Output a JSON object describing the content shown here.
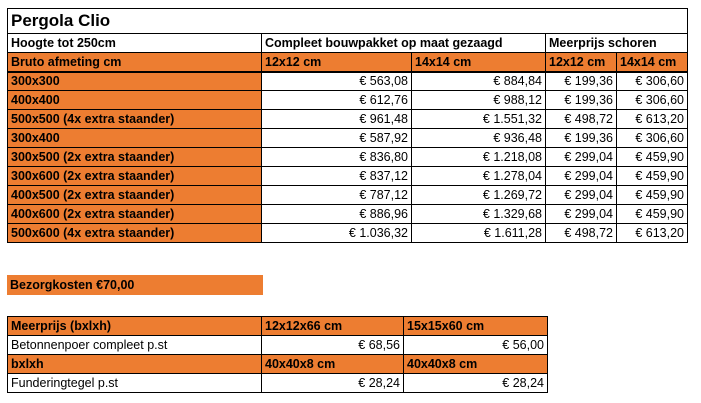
{
  "title": "Pergola Clio",
  "header": {
    "height_label": "Hoogte tot 250cm",
    "kit_label": "Compleet bouwpakket op maat gezaagd",
    "extra_label": "Meerprijs schoren"
  },
  "subheader": {
    "size_label": "Bruto afmeting cm",
    "col1": "12x12 cm",
    "col2": "14x14 cm",
    "col3": "12x12 cm",
    "col4": "14x14 cm"
  },
  "rows": [
    {
      "size": "300x300",
      "p1": "€ 563,08",
      "p2": "€ 884,84",
      "p3": "€ 199,36",
      "p4": "€ 306,60"
    },
    {
      "size": "400x400",
      "p1": "€ 612,76",
      "p2": "€ 988,12",
      "p3": "€ 199,36",
      "p4": "€ 306,60"
    },
    {
      "size": "500x500 (4x extra staander)",
      "p1": "€ 961,48",
      "p2": "€ 1.551,32",
      "p3": "€ 498,72",
      "p4": "€ 613,20"
    },
    {
      "size": "300x400",
      "p1": "€ 587,92",
      "p2": "€ 936,48",
      "p3": "€ 199,36",
      "p4": "€ 306,60"
    },
    {
      "size": "300x500 (2x extra staander)",
      "p1": "€ 836,80",
      "p2": "€ 1.218,08",
      "p3": "€ 299,04",
      "p4": "€ 459,90"
    },
    {
      "size": "300x600 (2x extra staander)",
      "p1": "€ 837,12",
      "p2": "€ 1.278,04",
      "p3": "€ 299,04",
      "p4": "€ 459,90"
    },
    {
      "size": "400x500 (2x extra staander)",
      "p1": "€ 787,12",
      "p2": "€ 1.269,72",
      "p3": "€ 299,04",
      "p4": "€ 459,90"
    },
    {
      "size": "400x600 (2x extra staander)",
      "p1": "€ 886,96",
      "p2": "€ 1.329,68",
      "p3": "€ 299,04",
      "p4": "€ 459,90"
    },
    {
      "size": "500x600 (4x extra staander)",
      "p1": "€ 1.036,32",
      "p2": "€ 1.611,28",
      "p3": "€ 498,72",
      "p4": "€ 613,20"
    }
  ],
  "delivery": "Bezorgkosten €70,00",
  "extras": {
    "header1": {
      "label": "Meerprijs (bxlxh)",
      "c1": "12x12x66 cm",
      "c2": "15x15x60 cm"
    },
    "row1": {
      "label": "Betonnenpoer compleet p.st",
      "v1": "€ 68,56",
      "v2": "€ 56,00"
    },
    "header2": {
      "label": "bxlxh",
      "c1": "40x40x8 cm",
      "c2": "40x40x8 cm"
    },
    "row2": {
      "label": "Funderingtegel p.st",
      "v1": "€ 28,24",
      "v2": "€ 28,24"
    }
  },
  "colors": {
    "accent": "#ed7d31"
  }
}
